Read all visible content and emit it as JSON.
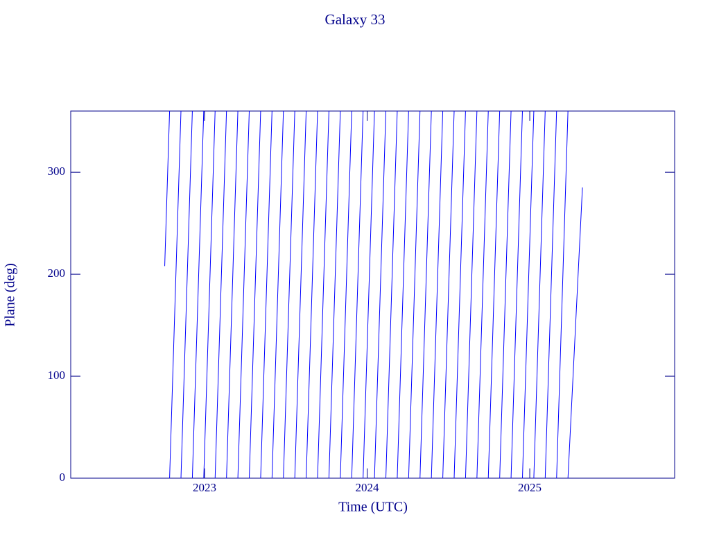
{
  "chart_data": {
    "type": "line",
    "title": "Galaxy 33",
    "xlabel": "Time (UTC)",
    "ylabel": "Plane (deg)",
    "xlim": [
      2022.177,
      2025.891
    ],
    "xticks": [
      2023,
      2024,
      2025
    ],
    "ylim": [
      0,
      360
    ],
    "yticks": [
      0,
      100,
      200,
      300
    ],
    "series": [
      {
        "color": "#0000ff",
        "x": [
          2022.755,
          2022.785,
          2022.785,
          2022.785,
          2022.855,
          2022.855,
          2022.855,
          2022.925,
          2022.925,
          2022.925,
          2022.995,
          2022.995,
          2022.995,
          2023.065,
          2023.065,
          2023.065,
          2023.135,
          2023.135,
          2023.135,
          2023.205,
          2023.205,
          2023.205,
          2023.275,
          2023.275,
          2023.275,
          2023.345,
          2023.345,
          2023.345,
          2023.415,
          2023.415,
          2023.415,
          2023.485,
          2023.485,
          2023.485,
          2023.555,
          2023.555,
          2023.555,
          2023.625,
          2023.625,
          2023.625,
          2023.695,
          2023.695,
          2023.695,
          2023.765,
          2023.765,
          2023.765,
          2023.835,
          2023.835,
          2023.835,
          2023.905,
          2023.905,
          2023.905,
          2023.975,
          2023.975,
          2023.975,
          2024.045,
          2024.045,
          2024.045,
          2024.115,
          2024.115,
          2024.115,
          2024.185,
          2024.185,
          2024.185,
          2024.255,
          2024.255,
          2024.255,
          2024.325,
          2024.325,
          2024.325,
          2024.395,
          2024.395,
          2024.395,
          2024.465,
          2024.465,
          2024.465,
          2024.535,
          2024.535,
          2024.535,
          2024.605,
          2024.605,
          2024.605,
          2024.675,
          2024.675,
          2024.675,
          2024.745,
          2024.745,
          2024.745,
          2024.815,
          2024.815,
          2024.815,
          2024.885,
          2024.885,
          2024.885,
          2024.955,
          2024.955,
          2024.955,
          2025.025,
          2025.025,
          2025.025,
          2025.095,
          2025.095,
          2025.095,
          2025.165,
          2025.165,
          2025.165,
          2025.235,
          2025.235,
          2025.235,
          2025.324
        ],
        "values": [
          208,
          360,
          null,
          0,
          360,
          null,
          0,
          360,
          null,
          0,
          360,
          null,
          0,
          360,
          null,
          0,
          360,
          null,
          0,
          360,
          null,
          0,
          360,
          null,
          0,
          360,
          null,
          0,
          360,
          null,
          0,
          360,
          null,
          0,
          360,
          null,
          0,
          360,
          null,
          0,
          360,
          null,
          0,
          360,
          null,
          0,
          360,
          null,
          0,
          360,
          null,
          0,
          360,
          null,
          0,
          360,
          null,
          0,
          360,
          null,
          0,
          360,
          null,
          0,
          360,
          null,
          0,
          360,
          null,
          0,
          360,
          null,
          0,
          360,
          null,
          0,
          360,
          null,
          0,
          360,
          null,
          0,
          360,
          null,
          0,
          360,
          null,
          0,
          360,
          null,
          0,
          360,
          null,
          0,
          360,
          null,
          0,
          360,
          null,
          0,
          360,
          null,
          0,
          360,
          null,
          0,
          360,
          null,
          0,
          285
        ]
      }
    ]
  }
}
